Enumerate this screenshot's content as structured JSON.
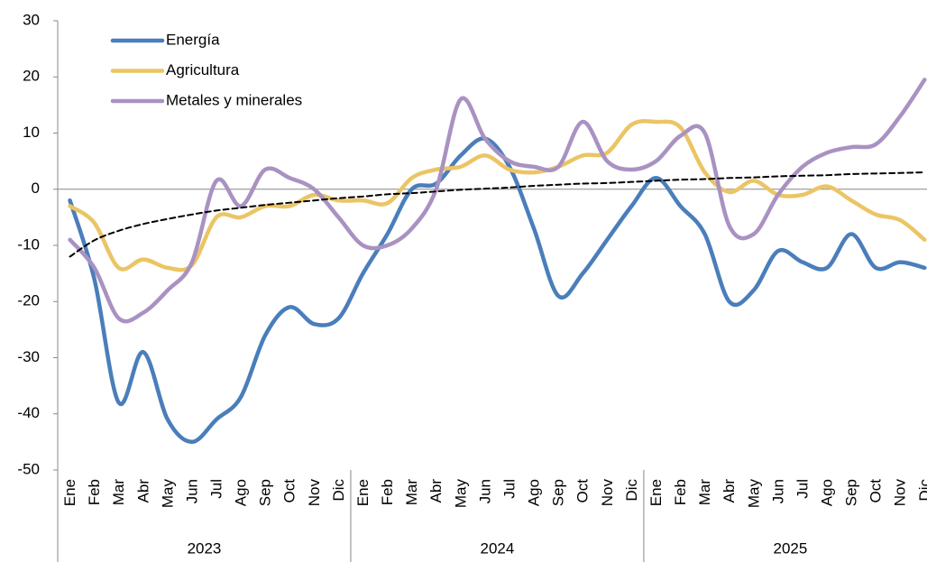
{
  "chart_data": {
    "type": "line",
    "categories": [
      "Ene",
      "Feb",
      "Mar",
      "Abr",
      "May",
      "Jun",
      "Jul",
      "Ago",
      "Sep",
      "Oct",
      "Nov",
      "Dic",
      "Ene",
      "Feb",
      "Mar",
      "Abr",
      "May",
      "Jun",
      "Jul",
      "Ago",
      "Sep",
      "Oct",
      "Nov",
      "Dic",
      "Ene",
      "Feb",
      "Mar",
      "Abr",
      "May",
      "Jun",
      "Jul",
      "Ago",
      "Sep",
      "Oct",
      "Nov",
      "Dic"
    ],
    "groups": [
      "2023",
      "2024",
      "2025"
    ],
    "ylim": [
      -50,
      30
    ],
    "yticks": [
      -50,
      -40,
      -30,
      -20,
      -10,
      0,
      10,
      20,
      30
    ],
    "legend": "upper left",
    "series": [
      {
        "name": "Energía",
        "color": "#4a7ebb",
        "values": [
          -2,
          -16,
          -38,
          -29,
          -41,
          -45,
          -41,
          -37,
          -26,
          -21,
          -24,
          -23,
          -15,
          -8,
          0,
          1,
          6,
          9,
          4,
          -7,
          -19,
          -15,
          -9,
          -3,
          2,
          -3,
          -8,
          -20,
          -18,
          -11,
          -13,
          -14,
          -8,
          -14,
          -13,
          -14
        ]
      },
      {
        "name": "Agricultura",
        "color": "#ebc565",
        "values": [
          -3,
          -6,
          -14,
          -12.5,
          -14,
          -13.5,
          -5,
          -5,
          -3,
          -3,
          -1,
          -2,
          -2,
          -2.5,
          2,
          3.5,
          4,
          6,
          3.5,
          3,
          4,
          6,
          6.5,
          11.5,
          12,
          11,
          3,
          -0.5,
          1.5,
          -1,
          -1,
          0.5,
          -2,
          -4.5,
          -5.5,
          -9
        ]
      },
      {
        "name": "Metales y minerales",
        "color": "#a992c2",
        "values": [
          -9,
          -14,
          -23,
          -22,
          -18,
          -13,
          1.5,
          -3,
          3.5,
          2,
          0,
          -5,
          -10,
          -10,
          -7,
          0,
          16,
          9,
          5,
          4,
          4,
          12,
          5,
          3.5,
          5,
          9.5,
          10,
          -6.5,
          -8,
          -1,
          4,
          6.5,
          7.5,
          8,
          13,
          19.5
        ]
      },
      {
        "color": "#000000",
        "dashed": true,
        "values": [
          -12,
          -9.1,
          -7.4,
          -6.2,
          -5.3,
          -4.5,
          -3.8,
          -3.3,
          -2.8,
          -2.4,
          -2.0,
          -1.6,
          -1.3,
          -0.9,
          -0.7,
          -0.4,
          -0.1,
          0.1,
          0.3,
          0.6,
          0.8,
          1.0,
          1.1,
          1.3,
          1.5,
          1.7,
          1.8,
          2.0,
          2.1,
          2.3,
          2.4,
          2.5,
          2.7,
          2.8,
          2.9,
          3.0
        ]
      }
    ]
  }
}
